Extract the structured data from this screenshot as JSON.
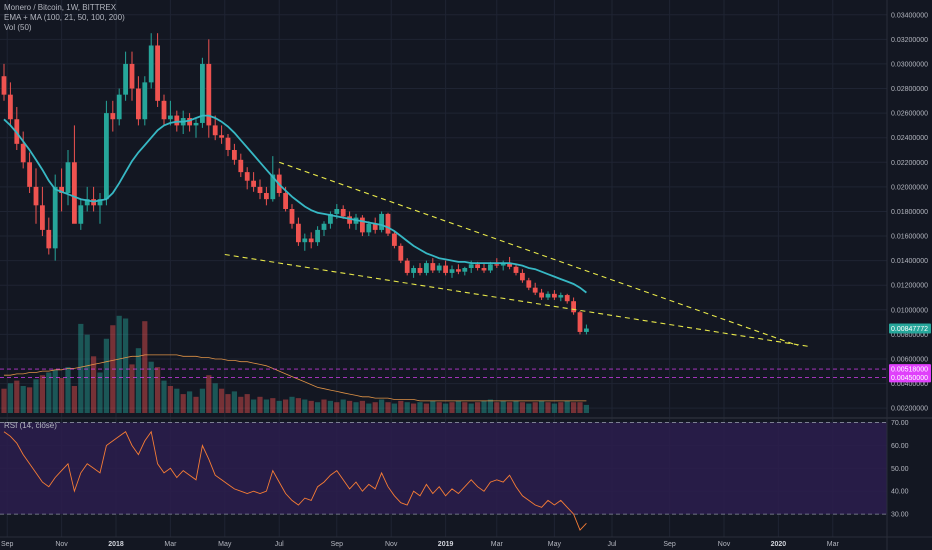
{
  "legend": {
    "symbol": "Monero / Bitcoin, 1W, BITTREX",
    "ema": "EMA + MA (100, 21, 50, 100, 200)",
    "vol": "Vol (50)",
    "rsi": "RSI (14, close)"
  },
  "colors": {
    "background": "#131722",
    "up": "#26a69a",
    "down": "#ef5350",
    "ema": "#37b8c4",
    "trend": "#e8e84a",
    "rsi_line": "#f57c35",
    "rsi_band": "#2b1d4e",
    "badge_price": "#26a69a",
    "badge_magenta": "#e040fb"
  },
  "chart_data": [
    {
      "type": "candlestick",
      "title": "Monero / Bitcoin, 1W, BITTREX",
      "y_axis_side": "right",
      "ylim": [
        0.0012,
        0.0352
      ],
      "y_ticks": [
        "0.03400000",
        "0.03200000",
        "0.03000000",
        "0.02800000",
        "0.02600000",
        "0.02400000",
        "0.02200000",
        "0.02000000",
        "0.01800000",
        "0.01600000",
        "0.01400000",
        "0.01200000",
        "0.01000000",
        "0.00800000",
        "0.00600000",
        "0.00400000",
        "0.00200000"
      ],
      "y_tick_values": [
        0.034,
        0.032,
        0.03,
        0.028,
        0.026,
        0.024,
        0.022,
        0.02,
        0.018,
        0.016,
        0.014,
        0.012,
        0.01,
        0.008,
        0.006,
        0.004,
        0.002
      ],
      "x_ticks": [
        "Sep",
        "Nov",
        "2018",
        "Mar",
        "May",
        "Jul",
        "Sep",
        "Nov",
        "2019",
        "Mar",
        "May",
        "Jul",
        "Sep",
        "Nov",
        "2020",
        "Mar",
        "May"
      ],
      "x_tick_indices": [
        0.5,
        9,
        17.5,
        26,
        34.5,
        43,
        52,
        60.5,
        69,
        77,
        86,
        95,
        104,
        112.5,
        121,
        129.5,
        138
      ],
      "x_bold_ticks": [
        "2018",
        "2019",
        "2020"
      ],
      "price_label": "0.00847772",
      "price_value": 0.00847772,
      "levels": [
        {
          "label": "0.00518000",
          "value": 0.00518
        },
        {
          "label": "0.00450000",
          "value": 0.0045
        }
      ],
      "candles_ohlc": [
        [
          0.029,
          0.03,
          0.027,
          0.0275
        ],
        [
          0.0275,
          0.0285,
          0.025,
          0.0255
        ],
        [
          0.0255,
          0.0265,
          0.023,
          0.0235
        ],
        [
          0.0235,
          0.0245,
          0.0215,
          0.022
        ],
        [
          0.022,
          0.0228,
          0.0195,
          0.02
        ],
        [
          0.02,
          0.0215,
          0.017,
          0.0185
        ],
        [
          0.0185,
          0.02,
          0.016,
          0.0165
        ],
        [
          0.0165,
          0.0175,
          0.0145,
          0.015
        ],
        [
          0.015,
          0.021,
          0.014,
          0.02
        ],
        [
          0.02,
          0.0215,
          0.018,
          0.0195
        ],
        [
          0.0195,
          0.023,
          0.0185,
          0.022
        ],
        [
          0.022,
          0.025,
          0.021,
          0.017
        ],
        [
          0.017,
          0.019,
          0.0165,
          0.0185
        ],
        [
          0.0185,
          0.02,
          0.018,
          0.019
        ],
        [
          0.019,
          0.02,
          0.018,
          0.0185
        ],
        [
          0.0185,
          0.0195,
          0.017,
          0.019
        ],
        [
          0.019,
          0.027,
          0.0185,
          0.026
        ],
        [
          0.026,
          0.027,
          0.0245,
          0.0255
        ],
        [
          0.0255,
          0.028,
          0.025,
          0.0275
        ],
        [
          0.0275,
          0.031,
          0.027,
          0.03
        ],
        [
          0.03,
          0.031,
          0.027,
          0.028
        ],
        [
          0.028,
          0.029,
          0.025,
          0.0255
        ],
        [
          0.0255,
          0.029,
          0.025,
          0.0285
        ],
        [
          0.0285,
          0.0325,
          0.028,
          0.0315
        ],
        [
          0.0315,
          0.0325,
          0.0265,
          0.027
        ],
        [
          0.027,
          0.0275,
          0.025,
          0.0255
        ],
        [
          0.0255,
          0.027,
          0.025,
          0.0258
        ],
        [
          0.0258,
          0.0262,
          0.0245,
          0.025
        ],
        [
          0.025,
          0.0262,
          0.0243,
          0.0256
        ],
        [
          0.0256,
          0.026,
          0.0245,
          0.025
        ],
        [
          0.025,
          0.0255,
          0.024,
          0.0252
        ],
        [
          0.0252,
          0.0305,
          0.0248,
          0.03
        ],
        [
          0.03,
          0.032,
          0.024,
          0.025
        ],
        [
          0.025,
          0.0258,
          0.0238,
          0.0242
        ],
        [
          0.0242,
          0.025,
          0.0235,
          0.024
        ],
        [
          0.024,
          0.0243,
          0.0225,
          0.023
        ],
        [
          0.023,
          0.0235,
          0.0218,
          0.0222
        ],
        [
          0.0222,
          0.0227,
          0.0208,
          0.0212
        ],
        [
          0.0212,
          0.0216,
          0.0198,
          0.0205
        ],
        [
          0.0205,
          0.0212,
          0.0196,
          0.02
        ],
        [
          0.02,
          0.0206,
          0.019,
          0.0195
        ],
        [
          0.0195,
          0.02,
          0.0185,
          0.019
        ],
        [
          0.019,
          0.0225,
          0.0188,
          0.021
        ],
        [
          0.021,
          0.0215,
          0.0192,
          0.0195
        ],
        [
          0.0195,
          0.02,
          0.018,
          0.0182
        ],
        [
          0.0182,
          0.0186,
          0.0166,
          0.017
        ],
        [
          0.017,
          0.0175,
          0.0152,
          0.0155
        ],
        [
          0.0155,
          0.0162,
          0.0148,
          0.0158
        ],
        [
          0.0158,
          0.0163,
          0.015,
          0.0155
        ],
        [
          0.0155,
          0.0168,
          0.0152,
          0.0165
        ],
        [
          0.0165,
          0.0172,
          0.016,
          0.017
        ],
        [
          0.017,
          0.018,
          0.0166,
          0.0178
        ],
        [
          0.0178,
          0.0186,
          0.0174,
          0.0182
        ],
        [
          0.0182,
          0.0185,
          0.0174,
          0.0176
        ],
        [
          0.0176,
          0.018,
          0.0166,
          0.017
        ],
        [
          0.017,
          0.0178,
          0.0165,
          0.0175
        ],
        [
          0.0175,
          0.0177,
          0.016,
          0.0163
        ],
        [
          0.0163,
          0.0172,
          0.016,
          0.017
        ],
        [
          0.017,
          0.0175,
          0.0162,
          0.0165
        ],
        [
          0.0165,
          0.018,
          0.0163,
          0.0178
        ],
        [
          0.0178,
          0.0179,
          0.016,
          0.0162
        ],
        [
          0.0162,
          0.0164,
          0.015,
          0.0152
        ],
        [
          0.0152,
          0.0154,
          0.0138,
          0.014
        ],
        [
          0.014,
          0.0142,
          0.0128,
          0.013
        ],
        [
          0.013,
          0.0136,
          0.0126,
          0.0134
        ],
        [
          0.0134,
          0.0138,
          0.0128,
          0.013
        ],
        [
          0.013,
          0.014,
          0.0128,
          0.0138
        ],
        [
          0.0138,
          0.0142,
          0.013,
          0.0132
        ],
        [
          0.0132,
          0.0138,
          0.013,
          0.0136
        ],
        [
          0.0136,
          0.014,
          0.0128,
          0.013
        ],
        [
          0.013,
          0.0136,
          0.0126,
          0.0133
        ],
        [
          0.0133,
          0.0137,
          0.0129,
          0.0131
        ],
        [
          0.0131,
          0.0135,
          0.0128,
          0.0134
        ],
        [
          0.0134,
          0.014,
          0.013,
          0.0137
        ],
        [
          0.0137,
          0.0139,
          0.0132,
          0.0134
        ],
        [
          0.0134,
          0.0138,
          0.013,
          0.0132
        ],
        [
          0.0132,
          0.0139,
          0.013,
          0.0137
        ],
        [
          0.0137,
          0.0142,
          0.0134,
          0.0136
        ],
        [
          0.0136,
          0.014,
          0.0132,
          0.0138
        ],
        [
          0.0138,
          0.0143,
          0.0133,
          0.0135
        ],
        [
          0.0135,
          0.0137,
          0.0128,
          0.013
        ],
        [
          0.013,
          0.0133,
          0.0122,
          0.0124
        ],
        [
          0.0124,
          0.0126,
          0.0116,
          0.0118
        ],
        [
          0.0118,
          0.0122,
          0.0112,
          0.0114
        ],
        [
          0.0114,
          0.0117,
          0.0108,
          0.011
        ],
        [
          0.011,
          0.0115,
          0.0108,
          0.0113
        ],
        [
          0.0113,
          0.0116,
          0.0108,
          0.011
        ],
        [
          0.011,
          0.0114,
          0.0107,
          0.0112
        ],
        [
          0.0112,
          0.0113,
          0.0105,
          0.0107
        ],
        [
          0.0107,
          0.011,
          0.0096,
          0.0098
        ],
        [
          0.0098,
          0.0099,
          0.008,
          0.0082
        ],
        [
          0.0082,
          0.0088,
          0.008,
          0.00847772
        ]
      ],
      "ema_series": [
        0.0255,
        0.025,
        0.0244,
        0.0237,
        0.023,
        0.0222,
        0.0214,
        0.0205,
        0.0198,
        0.0196,
        0.0194,
        0.0192,
        0.019,
        0.0189,
        0.0188,
        0.0189,
        0.019,
        0.0195,
        0.0203,
        0.0212,
        0.0221,
        0.0228,
        0.0234,
        0.024,
        0.0246,
        0.025,
        0.0252,
        0.0253,
        0.0253,
        0.0254,
        0.0256,
        0.0258,
        0.0258,
        0.0256,
        0.0253,
        0.0249,
        0.0244,
        0.0238,
        0.0232,
        0.0226,
        0.022,
        0.0214,
        0.0208,
        0.0202,
        0.0197,
        0.0192,
        0.0188,
        0.0184,
        0.0181,
        0.0179,
        0.0178,
        0.0177,
        0.0176,
        0.0175,
        0.0174,
        0.0173,
        0.0172,
        0.0171,
        0.017,
        0.0169,
        0.0167,
        0.0164,
        0.016,
        0.0156,
        0.0152,
        0.0149,
        0.0146,
        0.0144,
        0.0142,
        0.0141,
        0.014,
        0.0139,
        0.0139,
        0.0138,
        0.0138,
        0.0138,
        0.0138,
        0.0138,
        0.0138,
        0.0138,
        0.0137,
        0.0136,
        0.0134,
        0.0133,
        0.0131,
        0.0129,
        0.0127,
        0.0125,
        0.0123,
        0.0121,
        0.0118,
        0.0114
      ],
      "trendlines": [
        {
          "x1": 43,
          "y1": 0.022,
          "x2": 124,
          "y2": 0.0071
        },
        {
          "x1": 34.5,
          "y1": 0.0145,
          "x2": 126,
          "y2": 0.007
        }
      ],
      "volume_bars": [
        [
          18,
          0
        ],
        [
          22,
          1
        ],
        [
          24,
          0
        ],
        [
          20,
          1
        ],
        [
          19,
          0
        ],
        [
          25,
          1
        ],
        [
          28,
          0
        ],
        [
          30,
          1
        ],
        [
          32,
          1
        ],
        [
          26,
          0
        ],
        [
          34,
          1
        ],
        [
          20,
          0
        ],
        [
          66,
          1
        ],
        [
          58,
          1
        ],
        [
          42,
          0
        ],
        [
          30,
          1
        ],
        [
          55,
          1
        ],
        [
          65,
          0
        ],
        [
          72,
          1
        ],
        [
          70,
          1
        ],
        [
          36,
          0
        ],
        [
          48,
          1
        ],
        [
          68,
          0
        ],
        [
          38,
          1
        ],
        [
          34,
          0
        ],
        [
          24,
          1
        ],
        [
          20,
          0
        ],
        [
          18,
          1
        ],
        [
          14,
          0
        ],
        [
          16,
          1
        ],
        [
          12,
          0
        ],
        [
          18,
          1
        ],
        [
          28,
          0
        ],
        [
          22,
          1
        ],
        [
          18,
          0
        ],
        [
          14,
          0
        ],
        [
          16,
          1
        ],
        [
          12,
          0
        ],
        [
          14,
          0
        ],
        [
          10,
          1
        ],
        [
          12,
          0
        ],
        [
          10,
          1
        ],
        [
          11,
          0
        ],
        [
          9,
          1
        ],
        [
          10,
          0
        ],
        [
          12,
          1
        ],
        [
          11,
          0
        ],
        [
          10,
          1
        ],
        [
          9,
          0
        ],
        [
          8,
          1
        ],
        [
          10,
          0
        ],
        [
          9,
          1
        ],
        [
          8,
          0
        ],
        [
          10,
          1
        ],
        [
          9,
          0
        ],
        [
          8,
          1
        ],
        [
          9,
          0
        ],
        [
          7,
          1
        ],
        [
          8,
          0
        ],
        [
          10,
          1
        ],
        [
          8,
          0
        ],
        [
          7,
          1
        ],
        [
          9,
          0
        ],
        [
          8,
          1
        ],
        [
          7,
          0
        ],
        [
          8,
          1
        ],
        [
          7,
          0
        ],
        [
          9,
          1
        ],
        [
          8,
          0
        ],
        [
          7,
          1
        ],
        [
          8,
          0
        ],
        [
          9,
          1
        ],
        [
          8,
          0
        ],
        [
          7,
          1
        ],
        [
          8,
          0
        ],
        [
          9,
          1
        ],
        [
          10,
          1
        ],
        [
          8,
          0
        ],
        [
          9,
          1
        ],
        [
          8,
          0
        ],
        [
          9,
          1
        ],
        [
          8,
          0
        ],
        [
          7,
          1
        ],
        [
          8,
          0
        ],
        [
          9,
          1
        ],
        [
          8,
          0
        ],
        [
          7,
          1
        ],
        [
          8,
          0
        ],
        [
          9,
          1
        ],
        [
          8,
          0
        ],
        [
          8,
          0
        ],
        [
          6,
          1
        ]
      ],
      "volume_ma": [
        28,
        28,
        29,
        29,
        30,
        30,
        31,
        31,
        32,
        32,
        33,
        33,
        34,
        35,
        36,
        37,
        38,
        39,
        40,
        41,
        42,
        42,
        43,
        43,
        43,
        43,
        43,
        43,
        42,
        42,
        42,
        41,
        41,
        40,
        40,
        39,
        39,
        38,
        38,
        37,
        36,
        35,
        33,
        31,
        29,
        27,
        25,
        23,
        21,
        19,
        18,
        17,
        16,
        15,
        14,
        13,
        12,
        12,
        11,
        11,
        11,
        10,
        10,
        10,
        10,
        9,
        9,
        9,
        9,
        9,
        9,
        9,
        9,
        9,
        9,
        9,
        9,
        9,
        9,
        9,
        9,
        9,
        9,
        9,
        9,
        9,
        9,
        9,
        9,
        9,
        9,
        9
      ]
    },
    {
      "type": "line",
      "title": "RSI (14, close)",
      "ylim": [
        20,
        72
      ],
      "y_ticks": [
        "70.00",
        "60.00",
        "50.00",
        "40.00",
        "30.00"
      ],
      "y_tick_values": [
        70,
        60,
        50,
        40,
        30
      ],
      "band": [
        30,
        70
      ],
      "values": [
        66,
        64,
        61,
        56,
        52,
        48,
        44,
        42,
        46,
        49,
        52,
        40,
        48,
        52,
        50,
        48,
        60,
        62,
        64,
        66,
        60,
        56,
        62,
        66,
        52,
        48,
        50,
        46,
        49,
        47,
        45,
        60,
        54,
        47,
        45,
        43,
        41,
        40,
        39,
        40,
        39,
        40,
        49,
        44,
        39,
        36,
        34,
        37,
        36,
        42,
        44,
        47,
        49,
        45,
        41,
        44,
        40,
        43,
        41,
        48,
        42,
        38,
        35,
        34,
        40,
        38,
        43,
        39,
        42,
        38,
        41,
        39,
        42,
        45,
        42,
        40,
        44,
        45,
        44,
        47,
        42,
        38,
        36,
        34,
        33,
        36,
        34,
        36,
        33,
        30,
        23,
        26
      ]
    }
  ]
}
